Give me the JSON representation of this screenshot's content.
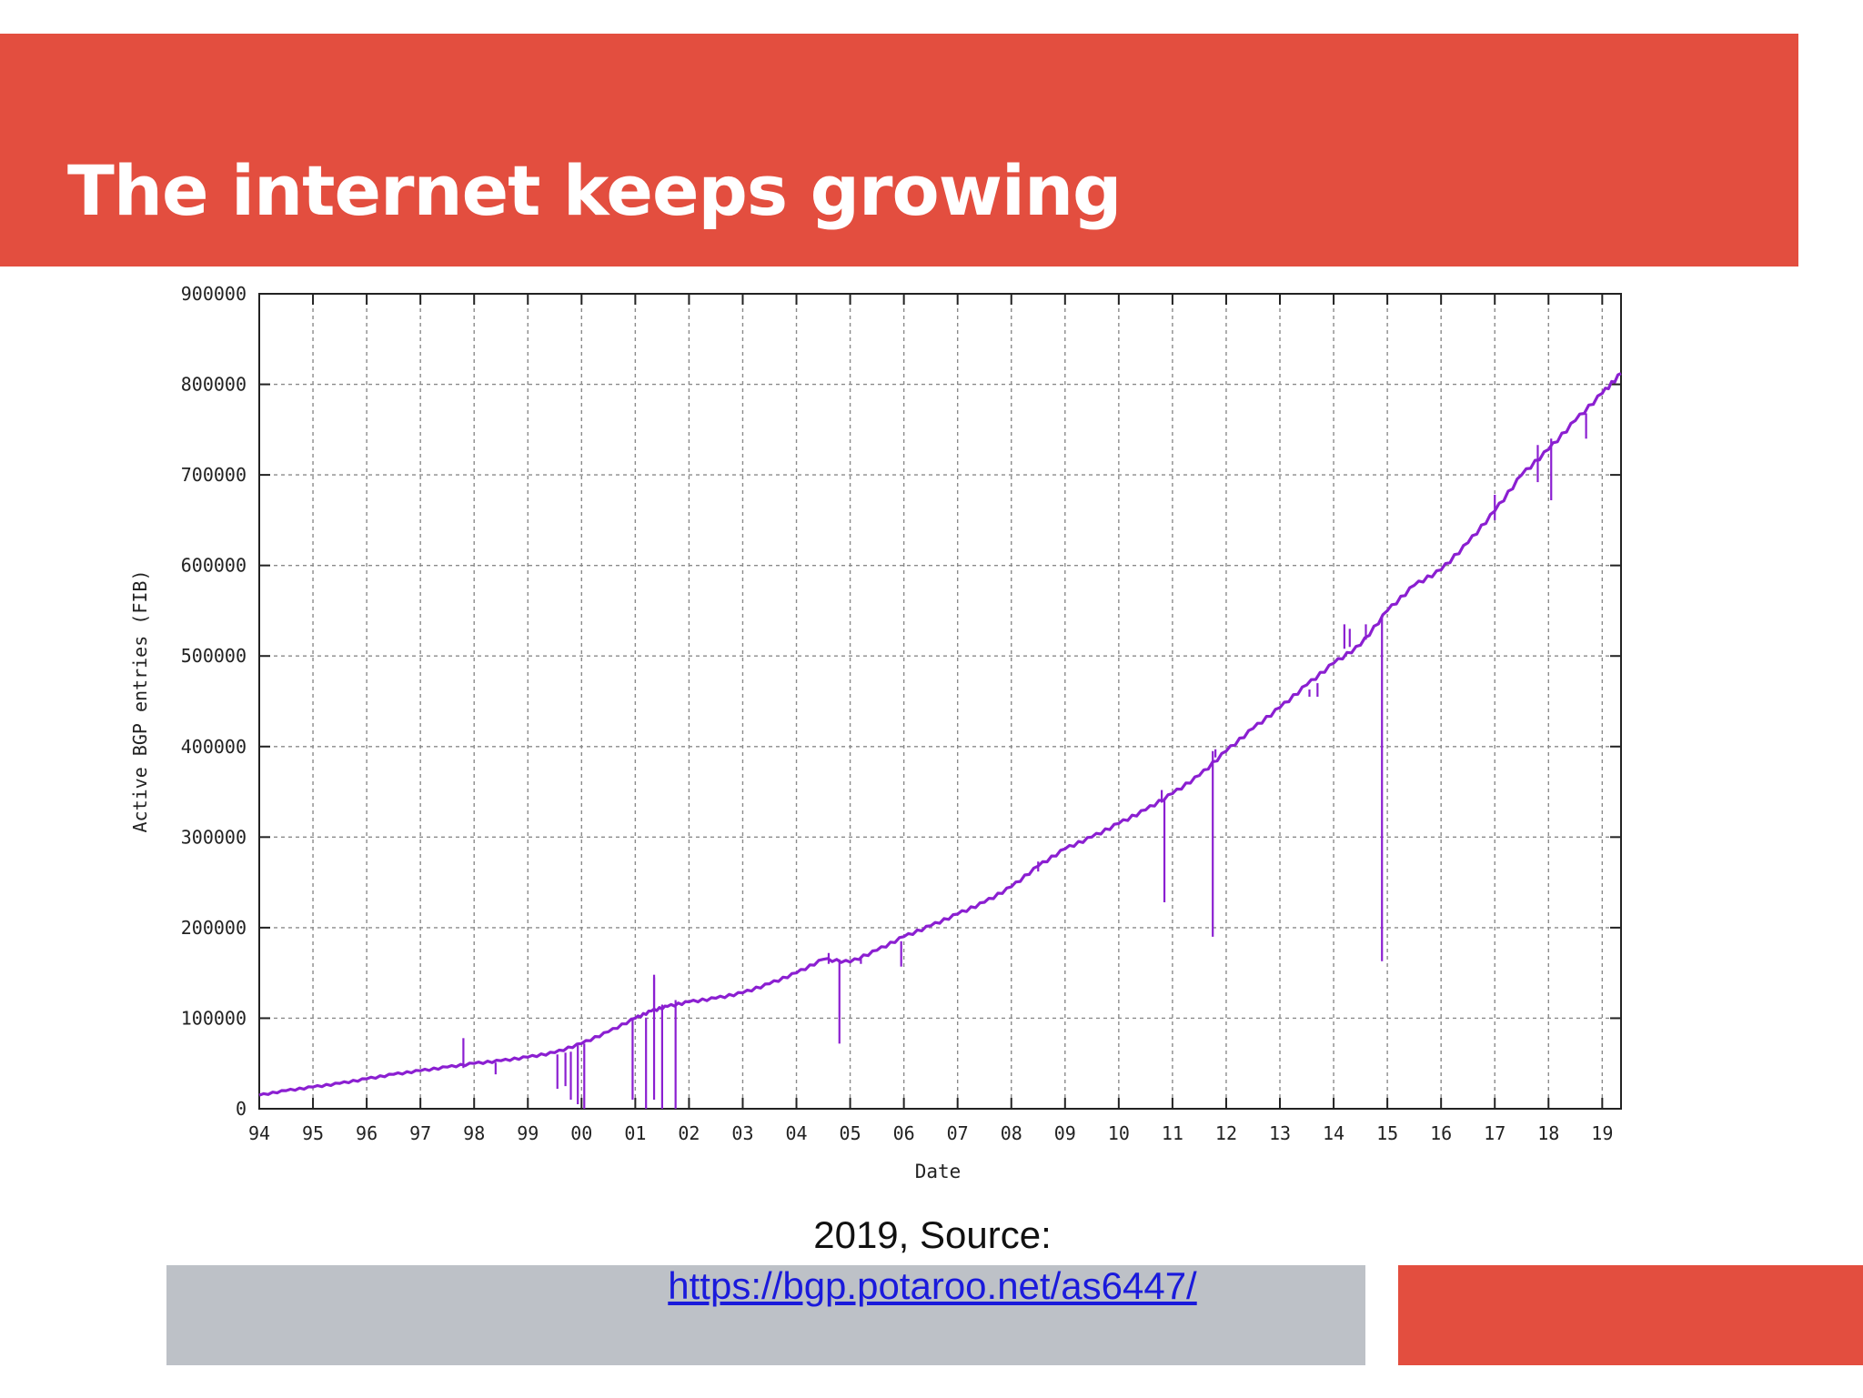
{
  "slide": {
    "title": "The internet keeps growing",
    "caption_year": "2019, Source:",
    "caption_link": "https://bgp.potaroo.net/as6447/"
  },
  "colors": {
    "accent_red": "#e34e3f",
    "footer_gray": "#bdc1c7",
    "series": "#8b1fd1",
    "link": "#1a1adb"
  },
  "chart_data": {
    "type": "line",
    "title": "",
    "xlabel": "Date",
    "ylabel": "Active BGP entries (FIB)",
    "x_tick_labels": [
      "94",
      "95",
      "96",
      "97",
      "98",
      "99",
      "00",
      "01",
      "02",
      "03",
      "04",
      "05",
      "06",
      "07",
      "08",
      "09",
      "10",
      "11",
      "12",
      "13",
      "14",
      "15",
      "16",
      "17",
      "18",
      "19"
    ],
    "x_tick_years": [
      1994,
      1995,
      1996,
      1997,
      1998,
      1999,
      2000,
      2001,
      2002,
      2003,
      2004,
      2005,
      2006,
      2007,
      2008,
      2009,
      2010,
      2011,
      2012,
      2013,
      2014,
      2015,
      2016,
      2017,
      2018,
      2019
    ],
    "xlim": [
      1994,
      2019.35
    ],
    "y_ticks": [
      0,
      100000,
      200000,
      300000,
      400000,
      500000,
      600000,
      700000,
      800000,
      900000
    ],
    "ylim": [
      0,
      900000
    ],
    "grid": true,
    "series": [
      {
        "points": [
          [
            1994.0,
            15000
          ],
          [
            1994.5,
            20000
          ],
          [
            1995.0,
            24000
          ],
          [
            1995.5,
            28000
          ],
          [
            1996.0,
            33000
          ],
          [
            1996.5,
            38000
          ],
          [
            1997.0,
            42000
          ],
          [
            1997.5,
            46000
          ],
          [
            1998.0,
            50000
          ],
          [
            1998.5,
            53000
          ],
          [
            1999.0,
            57000
          ],
          [
            1999.5,
            62000
          ],
          [
            2000.0,
            72000
          ],
          [
            2000.5,
            85000
          ],
          [
            2001.0,
            100000
          ],
          [
            2001.3,
            108000
          ],
          [
            2001.6,
            113000
          ],
          [
            2002.0,
            118000
          ],
          [
            2002.5,
            122000
          ],
          [
            2003.0,
            128000
          ],
          [
            2003.5,
            138000
          ],
          [
            2004.0,
            150000
          ],
          [
            2004.5,
            165000
          ],
          [
            2005.0,
            162000
          ],
          [
            2005.5,
            175000
          ],
          [
            2006.0,
            190000
          ],
          [
            2006.5,
            202000
          ],
          [
            2007.0,
            215000
          ],
          [
            2007.5,
            228000
          ],
          [
            2008.0,
            245000
          ],
          [
            2008.5,
            268000
          ],
          [
            2009.0,
            287000
          ],
          [
            2009.5,
            300000
          ],
          [
            2010.0,
            315000
          ],
          [
            2010.5,
            330000
          ],
          [
            2011.0,
            348000
          ],
          [
            2011.5,
            368000
          ],
          [
            2012.0,
            395000
          ],
          [
            2012.5,
            420000
          ],
          [
            2013.0,
            443000
          ],
          [
            2013.5,
            468000
          ],
          [
            2014.0,
            492000
          ],
          [
            2014.5,
            512000
          ],
          [
            2015.0,
            550000
          ],
          [
            2015.5,
            578000
          ],
          [
            2016.0,
            595000
          ],
          [
            2016.5,
            625000
          ],
          [
            2017.0,
            660000
          ],
          [
            2017.5,
            700000
          ],
          [
            2018.0,
            728000
          ],
          [
            2018.5,
            760000
          ],
          [
            2019.0,
            790000
          ],
          [
            2019.35,
            812000
          ]
        ],
        "dips": [
          [
            1997.8,
            78000,
            45000
          ],
          [
            1998.4,
            51000,
            38000
          ],
          [
            1999.55,
            60000,
            22000
          ],
          [
            1999.7,
            62000,
            25000
          ],
          [
            1999.8,
            63000,
            10000
          ],
          [
            1999.93,
            70000,
            5000
          ],
          [
            2000.05,
            72000,
            0
          ],
          [
            2000.95,
            98000,
            10000
          ],
          [
            2001.2,
            100000,
            0
          ],
          [
            2001.35,
            145000,
            10000
          ],
          [
            2001.5,
            115000,
            0
          ],
          [
            2001.75,
            120000,
            0
          ],
          [
            2004.8,
            165000,
            72000
          ],
          [
            2005.2,
            168000,
            160000
          ],
          [
            2005.95,
            185000,
            157000
          ],
          [
            2010.85,
            340000,
            228000
          ],
          [
            2011.75,
            395000,
            190000
          ],
          [
            2013.7,
            470000,
            455000
          ],
          [
            2014.9,
            545000,
            163000
          ],
          [
            2017.8,
            733000,
            692000
          ],
          [
            2018.05,
            740000,
            672000
          ]
        ],
        "spikes": [
          [
            2001.35,
            108000,
            148000
          ],
          [
            2004.6,
            160000,
            172000
          ],
          [
            2008.5,
            262000,
            273000
          ],
          [
            2010.8,
            338000,
            352000
          ],
          [
            2011.8,
            388000,
            397000
          ],
          [
            2013.55,
            455000,
            463000
          ],
          [
            2014.2,
            508000,
            535000
          ],
          [
            2014.3,
            510000,
            530000
          ],
          [
            2014.6,
            518000,
            535000
          ],
          [
            2017.0,
            650000,
            678000
          ],
          [
            2018.7,
            740000,
            768000
          ]
        ]
      }
    ]
  }
}
